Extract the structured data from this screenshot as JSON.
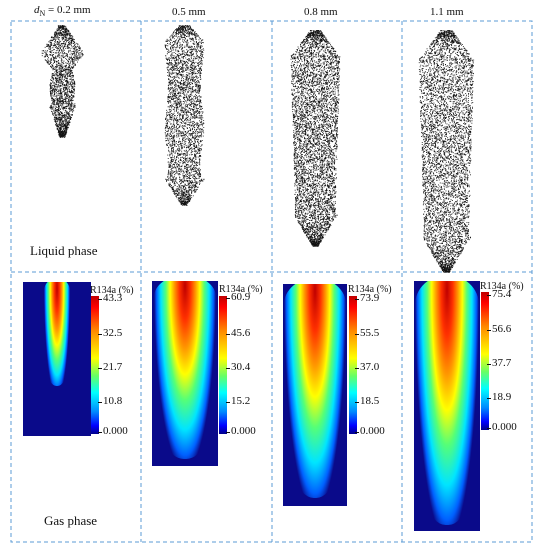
{
  "diameters": {
    "d1": {
      "prefix": "d",
      "sub": "N",
      "value": " = 0.2 mm"
    },
    "d2": "0.5 mm",
    "d3": "0.8 mm",
    "d4": "1.1 mm"
  },
  "phases": {
    "liquid": "Liquid phase",
    "gas": "Gas phase"
  },
  "colorbar_title": "R134a (%)",
  "colorbars": [
    {
      "ticks": [
        "43.3",
        "32.5",
        "21.7",
        "10.8",
        "0.000"
      ]
    },
    {
      "ticks": [
        "60.9",
        "45.6",
        "30.4",
        "15.2",
        "0.000"
      ]
    },
    {
      "ticks": [
        "73.9",
        "55.5",
        "37.0",
        "18.5",
        "0.000"
      ]
    },
    {
      "ticks": [
        "75.4",
        "56.6",
        "37.7",
        "18.9",
        "0.000"
      ]
    }
  ],
  "colors": {
    "frame": "#5b9bd5",
    "background_field": "#0a0a8a"
  }
}
